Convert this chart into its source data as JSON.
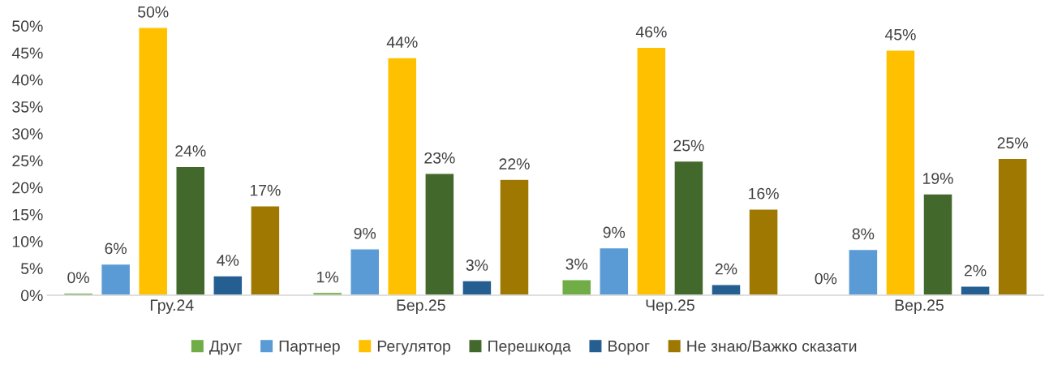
{
  "chart_data": {
    "type": "bar",
    "categories": [
      "Гру.24",
      "Бер.25",
      "Чер.25",
      "Вер.25"
    ],
    "series": [
      {
        "name": "Друг",
        "color": "#70ad47",
        "values": [
          0.4,
          0.5,
          2.9,
          0.2
        ],
        "value_labels": [
          "0%",
          "1%",
          "3%",
          "0%"
        ]
      },
      {
        "name": "Партнер",
        "color": "#5b9bd5",
        "values": [
          5.8,
          8.6,
          8.8,
          8.5
        ],
        "value_labels": [
          "6%",
          "9%",
          "9%",
          "8%"
        ]
      },
      {
        "name": "Регулятор",
        "color": "#ffc000",
        "values": [
          49.7,
          44.1,
          46.0,
          45.5
        ],
        "value_labels": [
          "50%",
          "44%",
          "46%",
          "45%"
        ]
      },
      {
        "name": "Перешкода",
        "color": "#43682b",
        "values": [
          23.9,
          22.6,
          24.9,
          18.8
        ],
        "value_labels": [
          "24%",
          "23%",
          "25%",
          "19%"
        ]
      },
      {
        "name": "Ворог",
        "color": "#255e91",
        "values": [
          3.6,
          2.7,
          2.0,
          1.7
        ],
        "value_labels": [
          "4%",
          "3%",
          "2%",
          "2%"
        ]
      },
      {
        "name": "Не знаю/Важко сказати",
        "color": "#9e7800",
        "values": [
          16.6,
          21.5,
          16.0,
          25.4
        ],
        "value_labels": [
          "17%",
          "22%",
          "16%",
          "25%"
        ]
      }
    ],
    "ylim": [
      0,
      50
    ],
    "yticks": [
      {
        "value": 0,
        "label": "0%"
      },
      {
        "value": 5,
        "label": "5%"
      },
      {
        "value": 10,
        "label": "10%"
      },
      {
        "value": 15,
        "label": "15%"
      },
      {
        "value": 20,
        "label": "20%"
      },
      {
        "value": 25,
        "label": "25%"
      },
      {
        "value": 30,
        "label": "30%"
      },
      {
        "value": 35,
        "label": "35%"
      },
      {
        "value": 40,
        "label": "40%"
      },
      {
        "value": 45,
        "label": "45%"
      },
      {
        "value": 50,
        "label": "50%"
      }
    ],
    "grid": false,
    "legend": "bottom"
  }
}
